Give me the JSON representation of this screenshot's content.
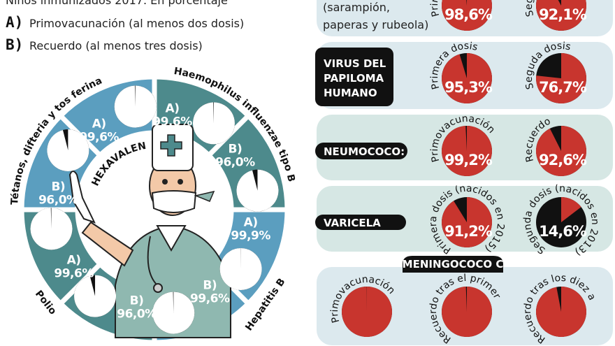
{
  "header": {
    "subtitle": "Niños inmunizados 2017. En porcentaje",
    "legend": [
      {
        "key": "A)",
        "label": "Primovacunación (al menos dos dosis)"
      },
      {
        "key": "B)",
        "label": "Recuerdo (al menos tres dosis)"
      }
    ]
  },
  "colors": {
    "red": "#c8352e",
    "black": "#111111",
    "ring_blue": "#5b9ebf",
    "ring_teal": "#4d8a8c",
    "panel_blue": "#dce9ee",
    "panel_green": "#d6e7e4"
  },
  "chart_data": [
    {
      "type": "pie",
      "title": "HEXAVALENTE",
      "groups": [
        {
          "name": "Tétanos, difteria y tos ferina",
          "series": [
            {
              "label": "A)",
              "value": 99.6,
              "text": "99,6%"
            },
            {
              "label": "B)",
              "value": 96.0,
              "text": "96,0%"
            }
          ]
        },
        {
          "name": "Haemophilus influenzae tipo B",
          "series": [
            {
              "label": "A)",
              "value": 99.6,
              "text": "99,6%"
            },
            {
              "label": "B)",
              "value": 96.0,
              "text": "96,0%"
            }
          ]
        },
        {
          "name": "Hepatitis B",
          "series": [
            {
              "label": "A)",
              "value": 99.9,
              "text": "99,9%"
            },
            {
              "label": "B)",
              "value": 99.6,
              "text": "99,6%"
            }
          ]
        },
        {
          "name": "Polio",
          "series": [
            {
              "label": "A)",
              "value": 99.6,
              "text": "99,6%"
            },
            {
              "label": "B)",
              "value": 96.0,
              "text": "96,0%"
            }
          ]
        }
      ]
    },
    {
      "type": "pie",
      "panels": [
        {
          "title_lines": [
            "(sarampión,",
            "paperas y rubeola)"
          ],
          "pies": [
            {
              "label": "Primera dosis",
              "value": 98.6,
              "text": "98,6%"
            },
            {
              "label": "Segunda dosis",
              "value": 92.1,
              "text": "92,1%"
            }
          ]
        },
        {
          "title_lines": [
            "VIRUS DEL",
            "PAPILOMA",
            "HUMANO"
          ],
          "pies": [
            {
              "label": "Primera dosis",
              "value": 95.3,
              "text": "95,3%"
            },
            {
              "label": "Seguda dosis",
              "value": 76.7,
              "text": "76,7%"
            }
          ]
        },
        {
          "title_lines": [
            "NEUMOCOCO:"
          ],
          "pies": [
            {
              "label": "Primovacunación",
              "value": 99.2,
              "text": "99,2%"
            },
            {
              "label": "Recuerdo",
              "value": 92.6,
              "text": "92,6%"
            }
          ]
        },
        {
          "title_lines": [
            "VARICELA"
          ],
          "pies": [
            {
              "label": "Primera dosis (nacidos en 2015)",
              "value": 91.2,
              "text": "91,2%"
            },
            {
              "label": "Segunda dosis (nacidos en 2013)",
              "value": 14.6,
              "text": "14,6%"
            }
          ]
        },
        {
          "title_lines": [
            "MENINGOCOCO C"
          ],
          "pies": [
            {
              "label": "Primovacunación",
              "value": 99.9,
              "text": ""
            },
            {
              "label": "Recuerdo tras el primer",
              "value": 99.4,
              "text": ""
            },
            {
              "label": "Recuerdo tras los diez a",
              "value": 97.0,
              "text": ""
            }
          ]
        }
      ]
    }
  ]
}
